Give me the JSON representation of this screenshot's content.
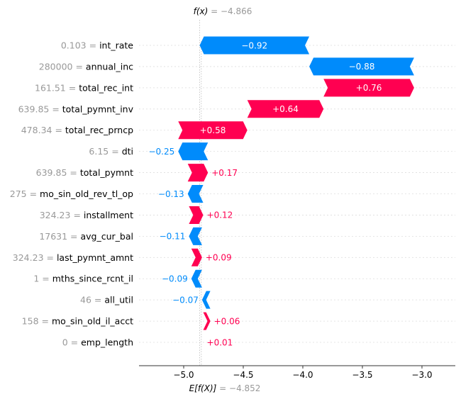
{
  "chart_data": {
    "type": "waterfall",
    "title": "",
    "top_label": {
      "fx": "f(x)",
      "eq": " = ",
      "value": "−4.866"
    },
    "bottom_label": {
      "efx": "E[f(X)]",
      "eq": " = ",
      "value": "−4.852"
    },
    "base_value": -4.852,
    "final_value": -4.866,
    "xlim": [
      -5.375,
      -2.72
    ],
    "xticks": [
      -5.0,
      -4.5,
      -4.0,
      -3.5,
      -3.0
    ],
    "xtick_labels": [
      "−5.0",
      "−4.5",
      "−4.0",
      "−3.5",
      "−3.0"
    ],
    "features": [
      {
        "value": "0.103",
        "name": "int_rate",
        "shap": -0.92,
        "label": "−0.92"
      },
      {
        "value": "280000",
        "name": "annual_inc",
        "shap": -0.88,
        "label": "−0.88"
      },
      {
        "value": "161.51",
        "name": "total_rec_int",
        "shap": 0.76,
        "label": "+0.76"
      },
      {
        "value": "639.85",
        "name": "total_pymnt_inv",
        "shap": 0.64,
        "label": "+0.64"
      },
      {
        "value": "478.34",
        "name": "total_rec_prncp",
        "shap": 0.58,
        "label": "+0.58"
      },
      {
        "value": "6.15",
        "name": "dti",
        "shap": -0.25,
        "label": "−0.25"
      },
      {
        "value": "639.85",
        "name": "total_pymnt",
        "shap": 0.17,
        "label": "+0.17"
      },
      {
        "value": "275",
        "name": "mo_sin_old_rev_tl_op",
        "shap": -0.13,
        "label": "−0.13"
      },
      {
        "value": "324.23",
        "name": "installment",
        "shap": 0.12,
        "label": "+0.12"
      },
      {
        "value": "17631",
        "name": "avg_cur_bal",
        "shap": -0.11,
        "label": "−0.11"
      },
      {
        "value": "324.23",
        "name": "last_pymnt_amnt",
        "shap": 0.09,
        "label": "+0.09"
      },
      {
        "value": "1",
        "name": "mths_since_rcnt_il",
        "shap": -0.09,
        "label": "−0.09"
      },
      {
        "value": "46",
        "name": "all_util",
        "shap": -0.07,
        "label": "−0.07"
      },
      {
        "value": "158",
        "name": "mo_sin_old_il_acct",
        "shap": 0.06,
        "label": "+0.06"
      },
      {
        "value": "0",
        "name": "emp_length",
        "shap": 0.01,
        "label": "+0.01"
      }
    ],
    "colors": {
      "positive": "#ff0051",
      "negative": "#008bfb",
      "feature_value": "#999999",
      "feature_name": "#000000",
      "grid": "#dddddd",
      "axis": "#333333"
    }
  }
}
